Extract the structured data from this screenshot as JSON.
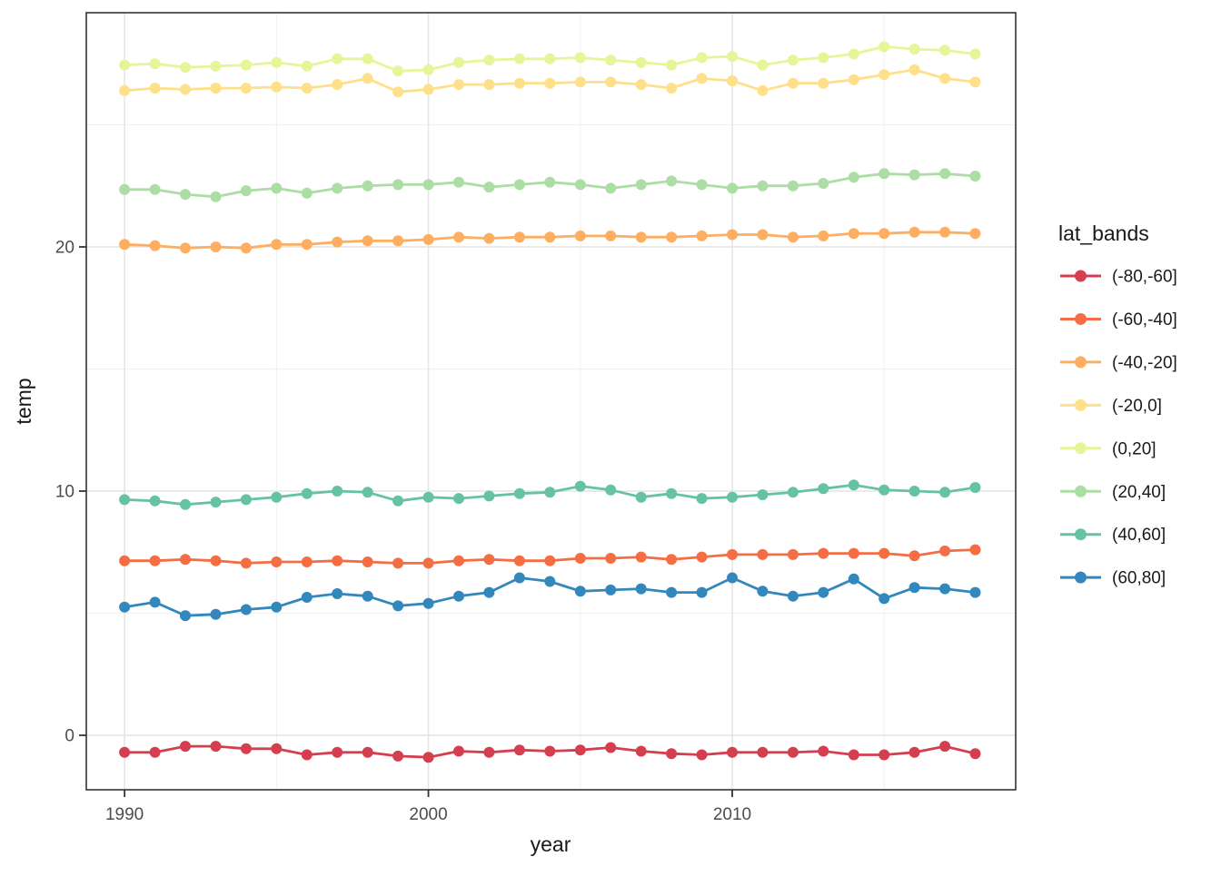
{
  "chart_data": {
    "type": "line",
    "title": "",
    "xlabel": "year",
    "ylabel": "temp",
    "legend": {
      "title": "lat_bands",
      "position": "right"
    },
    "x": [
      1990,
      1991,
      1992,
      1993,
      1994,
      1995,
      1996,
      1997,
      1998,
      1999,
      2000,
      2001,
      2002,
      2003,
      2004,
      2005,
      2006,
      2007,
      2008,
      2009,
      2010,
      2011,
      2012,
      2013,
      2014,
      2015,
      2016,
      2017,
      2018
    ],
    "series": [
      {
        "name": "(-80,-60]",
        "color": "#D53E4F",
        "values": [
          -0.7,
          -0.7,
          -0.45,
          -0.45,
          -0.55,
          -0.55,
          -0.8,
          -0.7,
          -0.7,
          -0.85,
          -0.9,
          -0.65,
          -0.7,
          -0.6,
          -0.65,
          -0.6,
          -0.5,
          -0.65,
          -0.75,
          -0.8,
          -0.7,
          -0.7,
          -0.7,
          -0.65,
          -0.8,
          -0.8,
          -0.7,
          -0.45,
          -0.75
        ]
      },
      {
        "name": "(-60,-40]",
        "color": "#F46D43",
        "values": [
          7.15,
          7.15,
          7.2,
          7.15,
          7.05,
          7.1,
          7.1,
          7.15,
          7.1,
          7.05,
          7.05,
          7.15,
          7.2,
          7.15,
          7.15,
          7.25,
          7.25,
          7.3,
          7.2,
          7.3,
          7.4,
          7.4,
          7.4,
          7.45,
          7.45,
          7.45,
          7.35,
          7.55,
          7.6
        ]
      },
      {
        "name": "(-40,-20]",
        "color": "#FDAE61",
        "values": [
          20.1,
          20.05,
          19.95,
          20.0,
          19.95,
          20.1,
          20.1,
          20.2,
          20.25,
          20.25,
          20.3,
          20.4,
          20.35,
          20.4,
          20.4,
          20.45,
          20.45,
          20.4,
          20.4,
          20.45,
          20.5,
          20.5,
          20.4,
          20.45,
          20.55,
          20.55,
          20.6,
          20.6,
          20.55
        ]
      },
      {
        "name": "(-20,0]",
        "color": "#FEE08B",
        "values": [
          26.4,
          26.5,
          26.45,
          26.5,
          26.5,
          26.55,
          26.5,
          26.65,
          26.9,
          26.35,
          26.45,
          26.65,
          26.65,
          26.7,
          26.7,
          26.75,
          26.75,
          26.65,
          26.5,
          26.9,
          26.8,
          26.4,
          26.7,
          26.7,
          26.85,
          27.05,
          27.25,
          26.9,
          26.75
        ]
      },
      {
        "name": "(0,20]",
        "color": "#E6F598",
        "values": [
          27.45,
          27.5,
          27.35,
          27.4,
          27.45,
          27.55,
          27.4,
          27.7,
          27.7,
          27.2,
          27.25,
          27.55,
          27.65,
          27.7,
          27.7,
          27.75,
          27.65,
          27.55,
          27.45,
          27.75,
          27.8,
          27.45,
          27.65,
          27.75,
          27.9,
          28.2,
          28.1,
          28.05,
          27.9
        ]
      },
      {
        "name": "(20,40]",
        "color": "#ABDDA4",
        "values": [
          22.35,
          22.35,
          22.15,
          22.05,
          22.3,
          22.4,
          22.2,
          22.4,
          22.5,
          22.55,
          22.55,
          22.65,
          22.45,
          22.55,
          22.65,
          22.55,
          22.4,
          22.55,
          22.7,
          22.55,
          22.4,
          22.5,
          22.5,
          22.6,
          22.85,
          23.0,
          22.95,
          23.0,
          22.9
        ]
      },
      {
        "name": "(40,60]",
        "color": "#66C2A5",
        "values": [
          9.65,
          9.6,
          9.45,
          9.55,
          9.65,
          9.75,
          9.9,
          10.0,
          9.95,
          9.6,
          9.75,
          9.7,
          9.8,
          9.9,
          9.95,
          10.2,
          10.05,
          9.75,
          9.9,
          9.7,
          9.75,
          9.85,
          9.95,
          10.1,
          10.25,
          10.05,
          10.0,
          9.95,
          10.15
        ]
      },
      {
        "name": "(60,80]",
        "color": "#3288BD",
        "values": [
          5.25,
          5.45,
          4.9,
          4.95,
          5.15,
          5.25,
          5.65,
          5.8,
          5.7,
          5.3,
          5.4,
          5.7,
          5.85,
          6.45,
          6.3,
          5.9,
          5.95,
          6.0,
          5.85,
          5.85,
          6.45,
          5.9,
          5.7,
          5.85,
          6.4,
          5.6,
          6.05,
          6.0,
          5.85
        ]
      }
    ],
    "x_ticks": [
      1990,
      2000,
      2010
    ],
    "x_minor_ticks": [
      1995,
      2005,
      2015
    ],
    "y_ticks": [
      0,
      10,
      20
    ],
    "y_minor_ticks": [
      5,
      15,
      25
    ],
    "xlim": [
      1988.74,
      2019.33
    ],
    "ylim": [
      -2.23,
      29.59
    ],
    "grid": "major+minor",
    "marker": "circle"
  },
  "style": {
    "background": "#ffffff",
    "panel_border": "#333333",
    "grid_major": "#e4e4e4",
    "grid_minor": "#f0f0f0",
    "tick_mark_color": "#333333",
    "tick_label_color": "#4d4d4d",
    "title_color": "#1a1a1a"
  }
}
